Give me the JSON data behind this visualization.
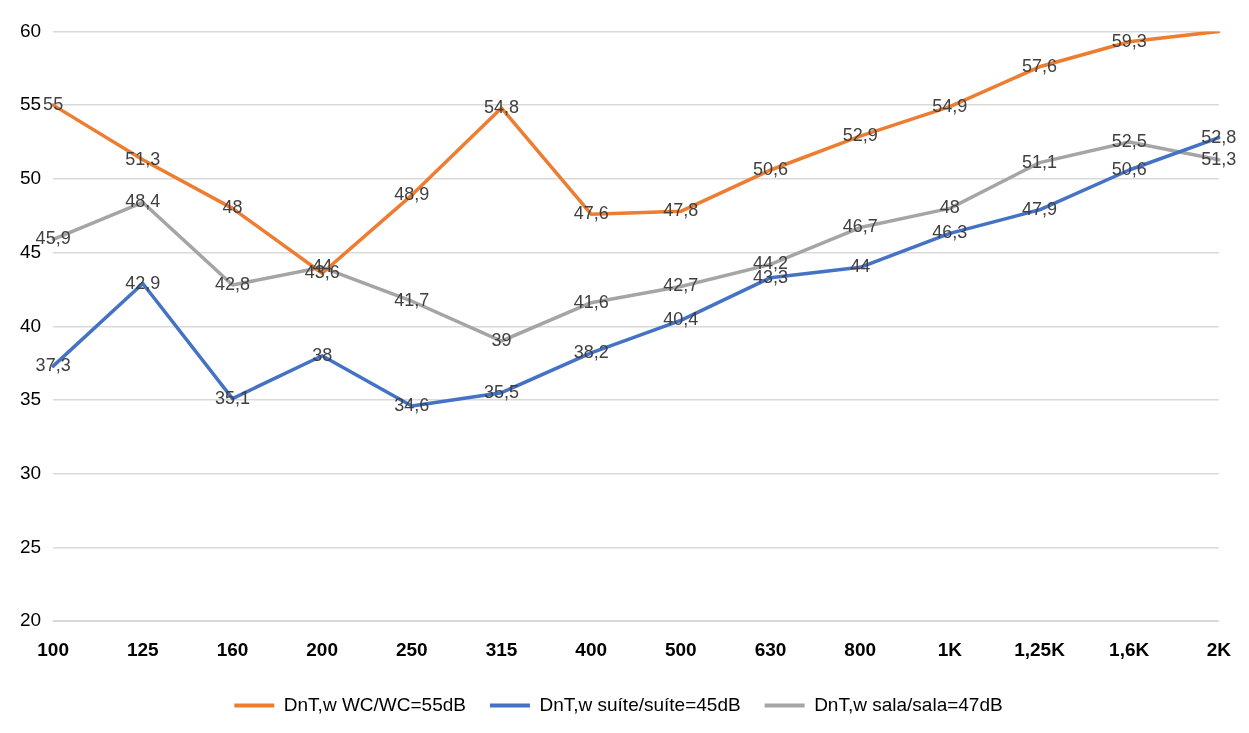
{
  "chart_data": {
    "type": "line",
    "categories": [
      "100",
      "125",
      "160",
      "200",
      "250",
      "315",
      "400",
      "500",
      "630",
      "800",
      "1K",
      "1,25K",
      "1,6K",
      "2K"
    ],
    "series": [
      {
        "name": "DnT,w WC/WC=55dB",
        "color": "#ed7d31",
        "values": [
          55,
          51.3,
          48,
          43.6,
          48.9,
          54.8,
          47.6,
          47.8,
          50.6,
          52.9,
          54.9,
          57.6,
          59.3,
          60
        ],
        "value_labels": [
          "55",
          "51,3",
          "48",
          "43,6",
          "48,9",
          "54,8",
          "47,6",
          "47,8",
          "50,6",
          "52,9",
          "54,9",
          "57,6",
          "59,3",
          null
        ]
      },
      {
        "name": "DnT,w suíte/suíte=45dB",
        "color": "#4472c4",
        "values": [
          37.3,
          42.9,
          35.1,
          38,
          34.6,
          35.5,
          38.2,
          40.4,
          43.3,
          44,
          46.3,
          47.9,
          50.6,
          52.8
        ],
        "value_labels": [
          "37,3",
          "42,9",
          "35,1",
          "38",
          "34,6",
          "35,5",
          "38,2",
          "40,4",
          "43,3",
          "44",
          "46,3",
          "47,9",
          "50,6",
          "52,8"
        ]
      },
      {
        "name": "DnT,w sala/sala=47dB",
        "color": "#a5a5a5",
        "values": [
          45.9,
          48.4,
          42.8,
          44,
          41.7,
          39,
          41.6,
          42.7,
          44.2,
          46.7,
          48,
          51.1,
          52.5,
          51.3
        ],
        "value_labels": [
          "45,9",
          "48,4",
          "42,8",
          "44",
          "41,7",
          "39",
          "41,6",
          "42,7",
          "44,2",
          "46,7",
          "48",
          "51,1",
          "52,5",
          "51,3"
        ]
      }
    ],
    "ylim": [
      20,
      60
    ],
    "yticks": [
      20,
      25,
      30,
      35,
      40,
      45,
      50,
      55,
      60
    ],
    "grid": "y",
    "legend": "bottom",
    "marker": "none",
    "line_style": "solid"
  }
}
